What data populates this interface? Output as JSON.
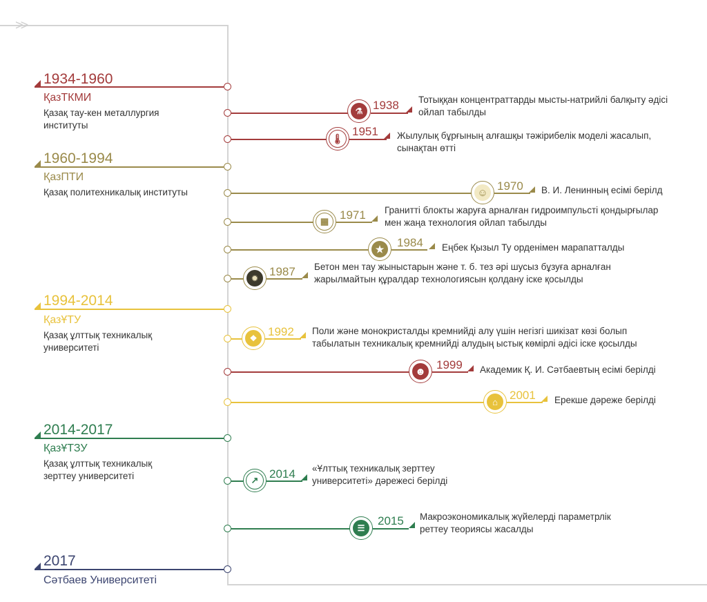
{
  "colors": {
    "red": "#a33b3b",
    "olive": "#9a8a4a",
    "yellow": "#e8c23c",
    "green": "#2e7d4f",
    "navy": "#3c4570",
    "axis": "#d4d4d4"
  },
  "eras": [
    {
      "years": "1934-1960",
      "abbr": "ҚазТКМИ",
      "full": "Қазақ тау-кен металлургия институты"
    },
    {
      "years": "1960-1994",
      "abbr": "ҚазПТИ",
      "full": "Қазақ политехникалық институты"
    },
    {
      "years": "1994-2014",
      "abbr": "ҚазҰТУ",
      "full": "Қазақ ұлттық техникалық университеті"
    },
    {
      "years": "2014-2017",
      "abbr": "ҚазҰТЗУ",
      "full": "Қазақ ұлттық техникалық зерттеу университеті"
    },
    {
      "years": "2017",
      "abbr": "Сәтбаев Университеті",
      "full": ""
    }
  ],
  "events": [
    {
      "year": "1938",
      "icon": "metal-pouring-icon",
      "text": "Тотыққан концентраттарды мысты-натрийлі балқыту әдісі ойлап табылды"
    },
    {
      "year": "1951",
      "icon": "thermometer-icon",
      "text": "Жылулық бұрғының алғашқы тәжірибелік моделі жасалып, сынақтан өтті"
    },
    {
      "year": "1970",
      "icon": "lenin-portrait-icon",
      "text": "В. И. Ленинның есімі берілд"
    },
    {
      "year": "1971",
      "icon": "granite-block-icon",
      "text": "Гранитті блокты жаруға арналған гидроимпульсті қондырғылар мен жаңа технология ойлап табылды"
    },
    {
      "year": "1984",
      "icon": "order-star-icon",
      "text": "Еңбек Қызыл Ту орденімен марапатталды"
    },
    {
      "year": "1987",
      "icon": "explosion-rocks-icon",
      "text": "Бетон мен тау жыныстарын және т. б. тез әрі шусыз бұзуға арналған жарылмайтын құралдар технологиясын қолдану іске қосылды"
    },
    {
      "year": "1992",
      "icon": "silicon-crystals-icon",
      "text": "Поли және монокристалды кремнийді алу үшін негізгі шикізат көзі болып табылатын техникалық кремнийді алудың ыстық көмірлі әдісі іске қосылды"
    },
    {
      "year": "1999",
      "icon": "satbayev-portrait-icon",
      "text": "Академик Қ. И. Сәтбаевтың есімі берілді"
    },
    {
      "year": "2001",
      "icon": "institution-building-icon",
      "text": "Ерекше дәреже берілді"
    },
    {
      "year": "2014",
      "icon": "research-growth-icon",
      "text": "«Ұлттық техникалық зерттеу университеті» дәрежесі берілді"
    },
    {
      "year": "2015",
      "icon": "coin-stack-icon",
      "text": "Макроэкономикалық жүйелерді параметрлік реттеу теориясы жасалды"
    }
  ]
}
